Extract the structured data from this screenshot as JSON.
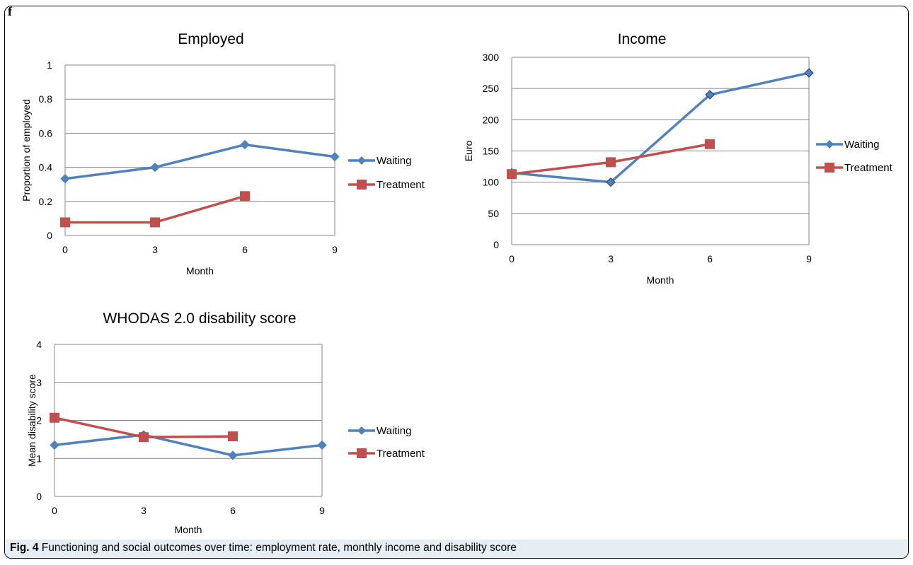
{
  "panel_letter": "f",
  "caption": {
    "label": "Fig. 4",
    "text": "Functioning and social outcomes over time: employment rate, monthly income and disability score"
  },
  "colors": {
    "Waiting": "#4f81bd",
    "Treatment": "#c0504d",
    "grid": "#878787"
  },
  "chart_data": [
    {
      "type": "line",
      "title": "Employed",
      "xlabel": "Month",
      "ylabel": "Proportion of employed",
      "x": [
        0,
        3,
        6,
        9
      ],
      "xticks": [
        "0",
        "3",
        "6",
        "9"
      ],
      "ylim": [
        0,
        1
      ],
      "yticks": [
        "0",
        "0.2",
        "0.4",
        "0.6",
        "0.8",
        "1"
      ],
      "grid": true,
      "legend": "right",
      "series": [
        {
          "name": "Waiting",
          "marker": "diamond",
          "values": [
            0.333,
            0.4,
            0.533,
            0.462
          ]
        },
        {
          "name": "Treatment",
          "marker": "square",
          "values": [
            0.077,
            0.077,
            0.231,
            null
          ]
        }
      ]
    },
    {
      "type": "line",
      "title": "Income",
      "xlabel": "Month",
      "ylabel": "Euro",
      "x": [
        0,
        3,
        6,
        9
      ],
      "xticks": [
        "0",
        "3",
        "6",
        "9"
      ],
      "ylim": [
        0,
        300
      ],
      "yticks": [
        "0",
        "50",
        "100",
        "150",
        "200",
        "250",
        "300"
      ],
      "grid": true,
      "legend": "right",
      "series": [
        {
          "name": "Waiting",
          "marker": "diamond",
          "values": [
            115,
            100,
            240,
            275
          ]
        },
        {
          "name": "Treatment",
          "marker": "square",
          "values": [
            113,
            132,
            161,
            null
          ]
        }
      ]
    },
    {
      "type": "line",
      "title": "WHODAS 2.0 disability score",
      "xlabel": "Month",
      "ylabel": "Mean disability score",
      "x": [
        0,
        3,
        6,
        9
      ],
      "xticks": [
        "0",
        "3",
        "6",
        "9"
      ],
      "ylim": [
        0,
        4
      ],
      "yticks": [
        "0",
        "1",
        "2",
        "3",
        "4"
      ],
      "grid": true,
      "legend": "right",
      "series": [
        {
          "name": "Waiting",
          "marker": "diamond",
          "values": [
            1.35,
            1.62,
            1.08,
            1.35
          ]
        },
        {
          "name": "Treatment",
          "marker": "square",
          "values": [
            2.07,
            1.56,
            1.58,
            null
          ]
        }
      ]
    }
  ]
}
